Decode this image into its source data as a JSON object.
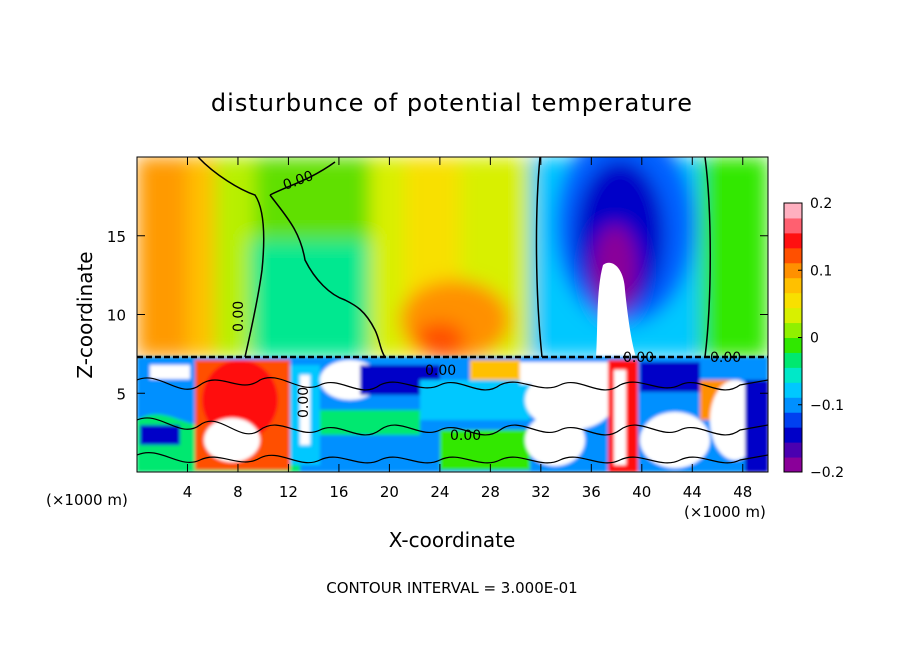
{
  "chart_data": {
    "type": "heatmap",
    "title": "disturbunce of potential temperature",
    "xlabel": "X-coordinate",
    "ylabel": "Z-coordinate",
    "x_unit": "(×1000 m)",
    "y_unit": "(×1000 m)",
    "xlim": [
      0,
      50
    ],
    "ylim": [
      0,
      20
    ],
    "x_ticks": [
      4,
      8,
      12,
      16,
      20,
      24,
      28,
      32,
      36,
      40,
      44,
      48
    ],
    "y_ticks": [
      5,
      10,
      15
    ],
    "colorbar": {
      "min": -0.2,
      "max": 0.2,
      "tick_values": [
        0.2,
        0.1,
        0,
        -0.1,
        -0.2
      ],
      "tick_labels": [
        "0.2",
        "0.1",
        "0",
        "−0.1",
        "−0.2"
      ],
      "colors": [
        "#8a0099",
        "#4a00b0",
        "#0000c8",
        "#0040f0",
        "#0090ff",
        "#00c8ff",
        "#00e8c8",
        "#00e870",
        "#30e800",
        "#90f000",
        "#d8f000",
        "#f8e000",
        "#ffc000",
        "#ff9000",
        "#ff5000",
        "#ff1010",
        "#ff6070",
        "#ffb0c0"
      ]
    },
    "contour_labels": [
      "0.00",
      "0.00",
      "0.00",
      "0.00",
      "0.00",
      "0.00",
      "0.00"
    ],
    "annotation": "CONTOUR INTERVAL = 3.000E-01"
  }
}
